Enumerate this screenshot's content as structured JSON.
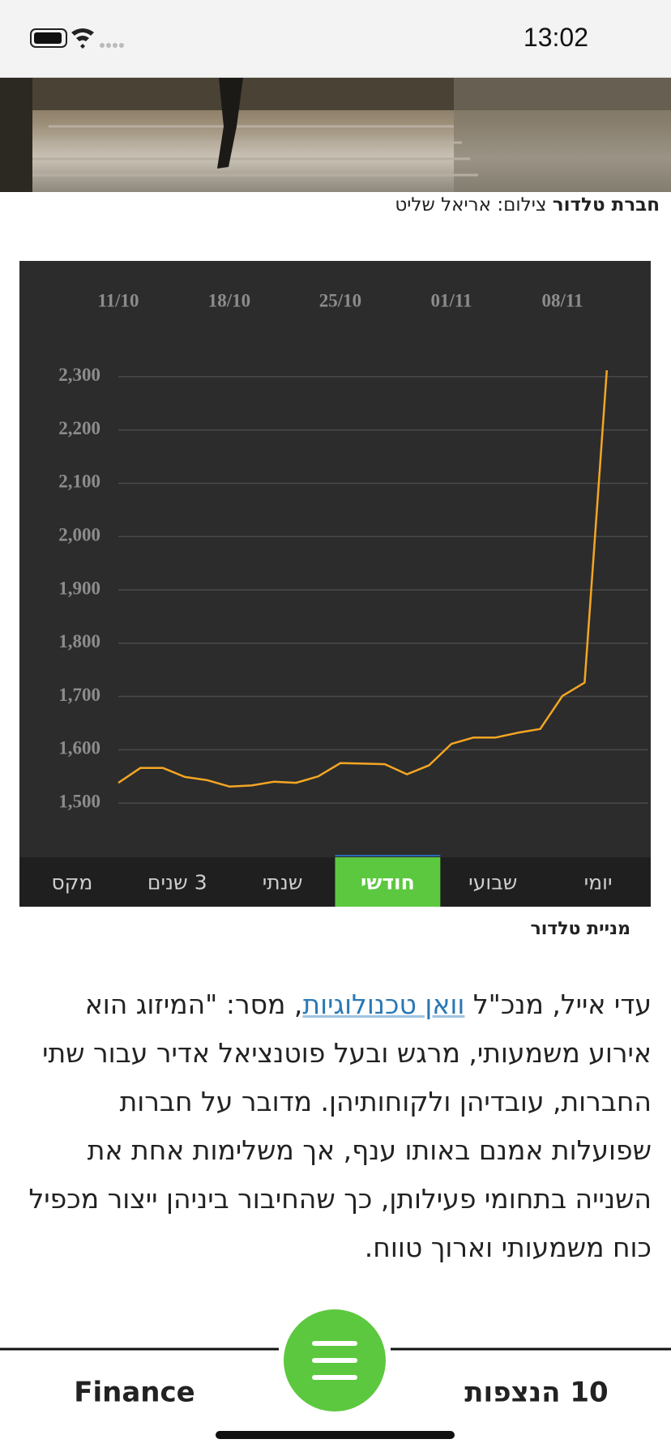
{
  "status_bar": {
    "time": "13:02"
  },
  "photo_caption": {
    "bold": "חברת טלדור",
    "credit": "צילום: אריאל שליט"
  },
  "chart_data": {
    "type": "line",
    "categories": [
      "11/10",
      null,
      null,
      null,
      null,
      "18/10",
      null,
      null,
      null,
      null,
      "25/10",
      null,
      null,
      null,
      null,
      "01/11",
      null,
      null,
      null,
      null,
      "08/11",
      null,
      null
    ],
    "series": [
      {
        "color": "#f5a623",
        "values": [
          1538,
          1566,
          1566,
          1549,
          1543,
          1531,
          1533,
          1540,
          1538,
          1550,
          1575,
          1574,
          1573,
          1554,
          1571,
          1611,
          1623,
          1623,
          1632,
          1639,
          1701,
          1726,
          2312
        ]
      }
    ],
    "ylim": [
      1450,
      2350
    ],
    "yticks": [
      {
        "value": 1500,
        "label": "1,500"
      },
      {
        "value": 1600,
        "label": "1,600"
      },
      {
        "value": 1700,
        "label": "1,700"
      },
      {
        "value": 1800,
        "label": "1,800"
      },
      {
        "value": 1900,
        "label": "1,900"
      },
      {
        "value": 2000,
        "label": "2,000"
      },
      {
        "value": 2100,
        "label": "2,100"
      },
      {
        "value": 2200,
        "label": "2,200"
      },
      {
        "value": 2300,
        "label": "2,300"
      }
    ],
    "grid": true
  },
  "chart_tabs": {
    "items": [
      "יומי",
      "שבועי",
      "חודשי",
      "שנתי",
      "3 שנים",
      "מקס"
    ],
    "active": 2
  },
  "chart_caption": "מניית טלדור",
  "article": {
    "before_link": "עדי אייל, מנכ\"ל ",
    "link": "וואן טכנולוגיות",
    "after_link": ", מסר: \"המיזוג הוא אירוע משמעותי, מרגש ובעל פוטנציאל אדיר עבור שתי החברות, עובדיהן ולקוחותיהן. מדובר על חברות שפועלות אמנם באותו ענף, אך משלימות אחת את השנייה בתחומי פעילותן, כך שהחיבור ביניהן ייצור מכפיל כוח משמעותי וארוך טווח."
  },
  "bottom_nav": {
    "left": "Finance",
    "right": "10 הנצפות"
  }
}
